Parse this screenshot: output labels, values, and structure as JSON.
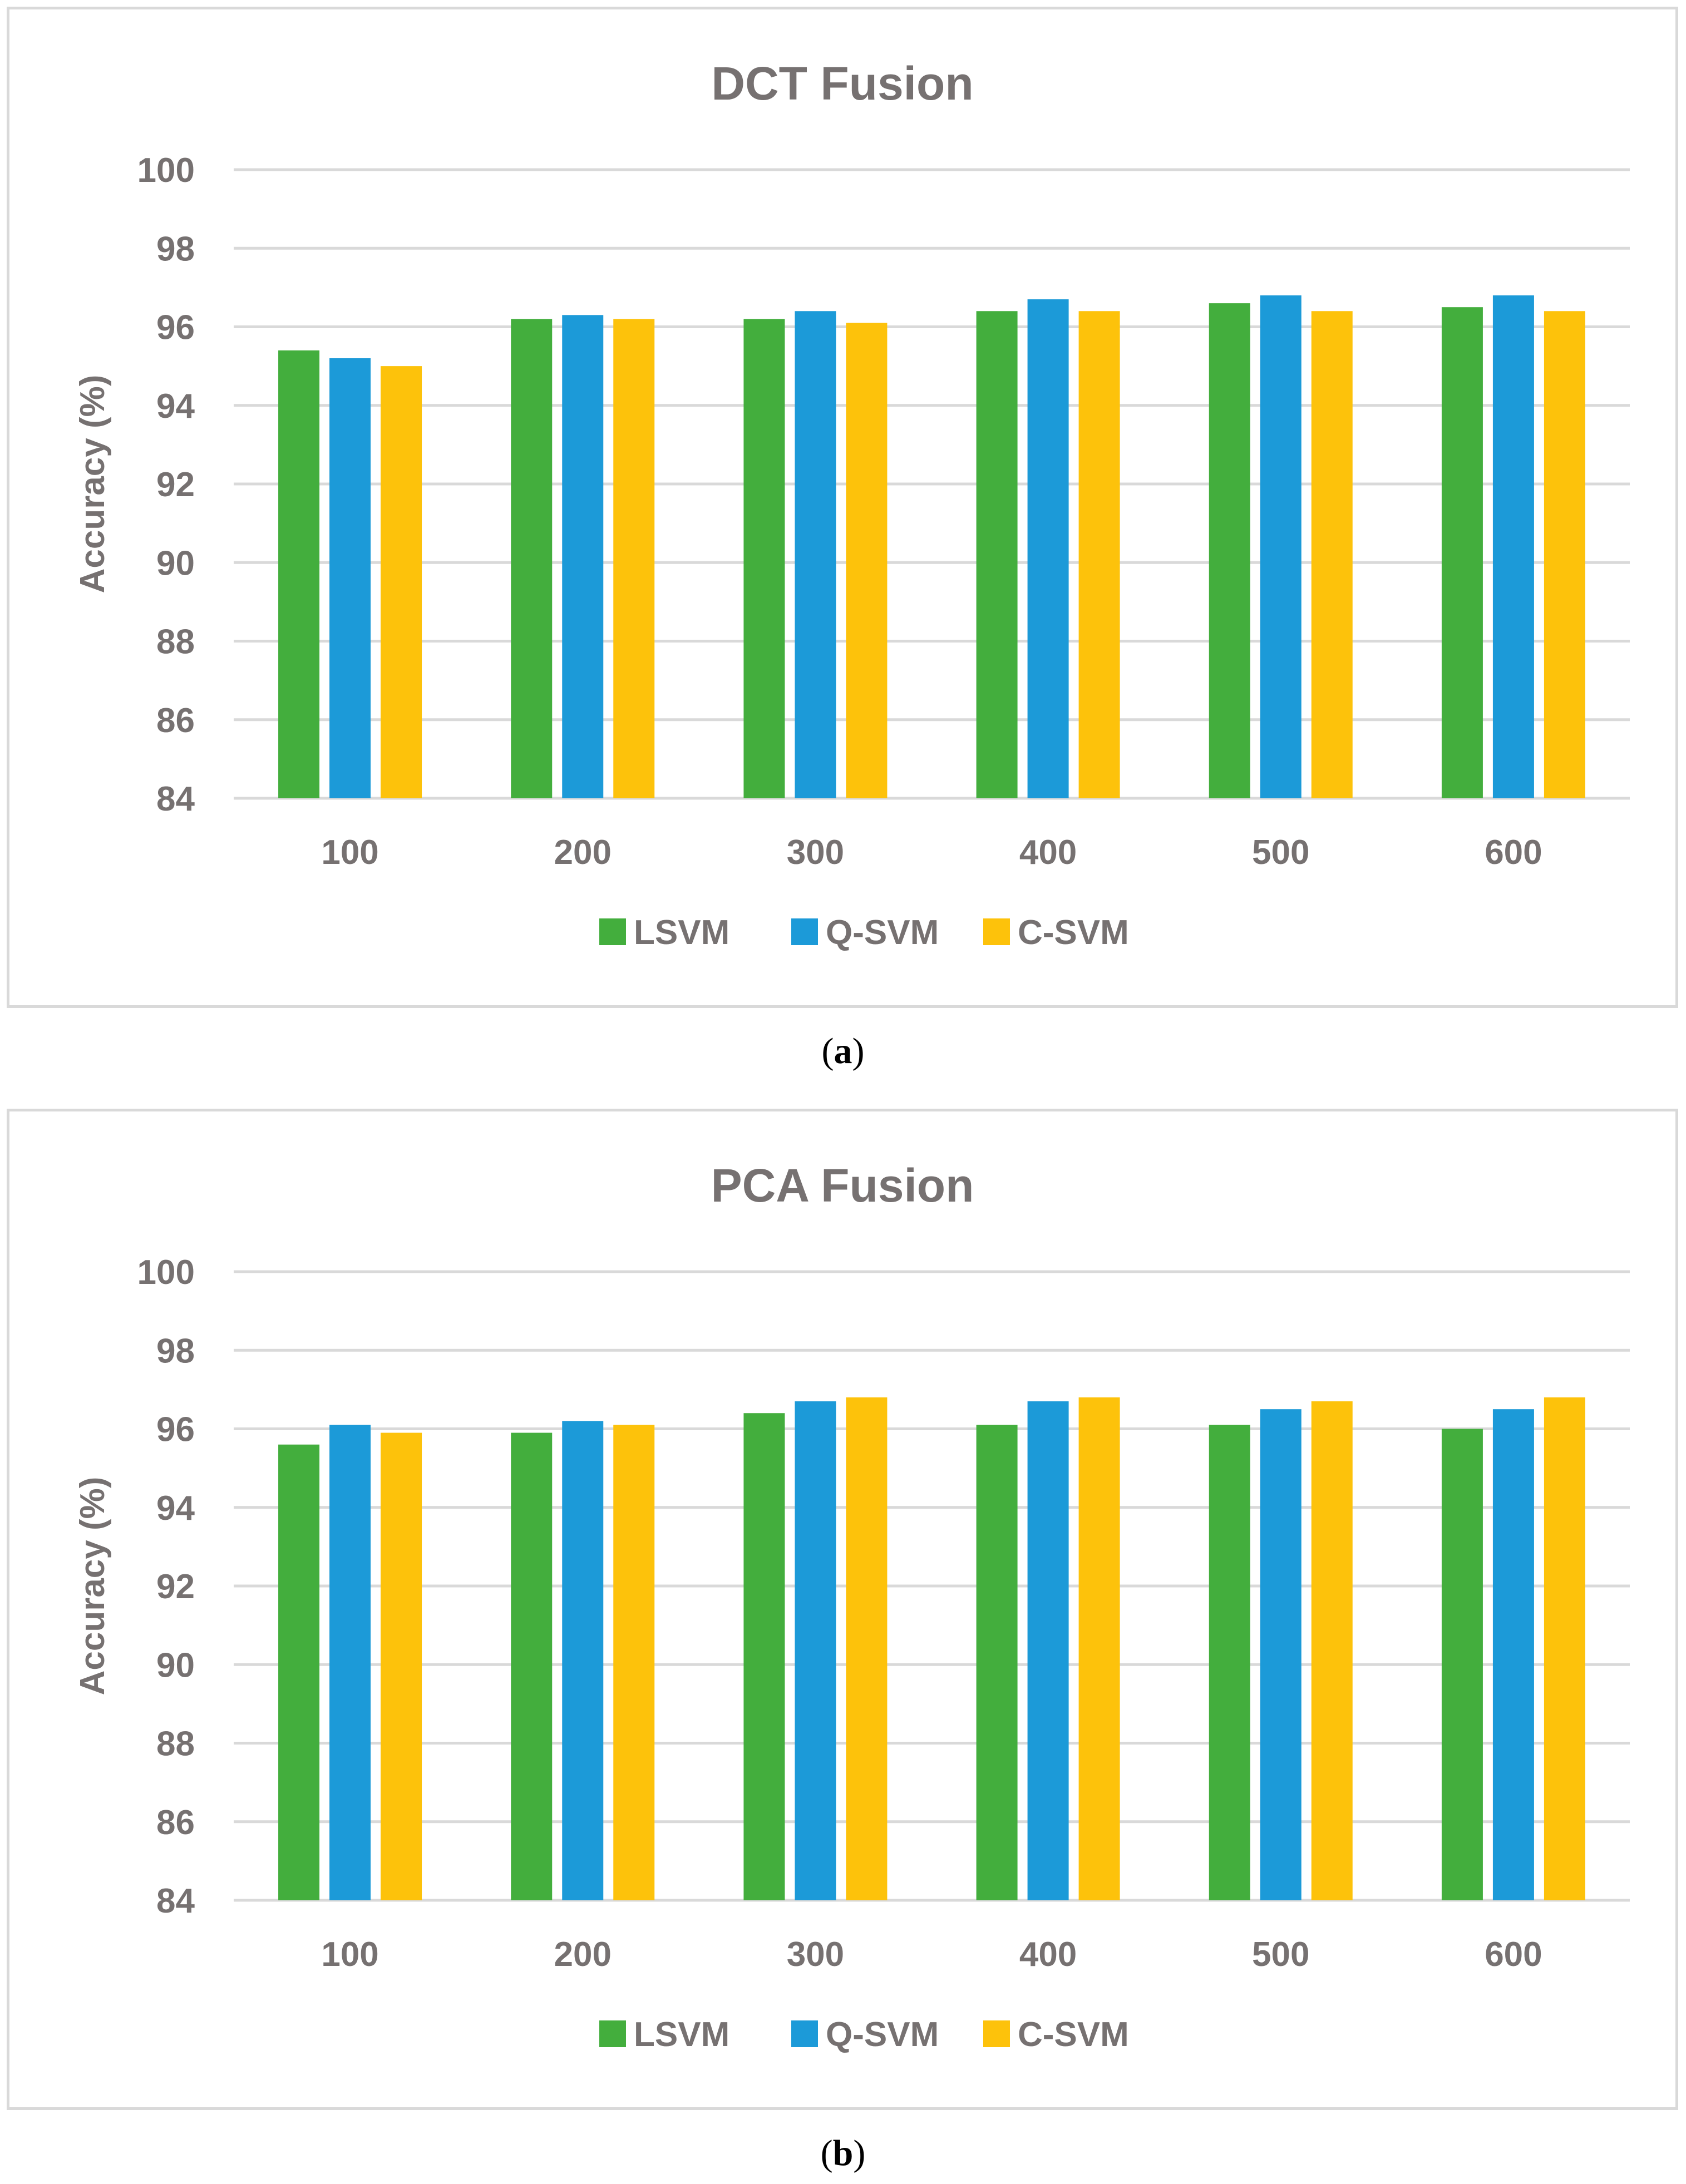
{
  "series_colors": {
    "LSVM": "#43ae3d",
    "Q-SVM": "#1c9ad8",
    "C-SVM": "#fdc20b"
  },
  "chart_data": [
    {
      "type": "bar",
      "title": "DCT Fusion",
      "caption": "a",
      "xlabel": "",
      "ylabel": "Accuracy (%)",
      "ylim": [
        84,
        100
      ],
      "yticks": [
        84,
        86,
        88,
        90,
        92,
        94,
        96,
        98,
        100
      ],
      "grid": true,
      "legend": "bottom",
      "categories": [
        "100",
        "200",
        "300",
        "400",
        "500",
        "600"
      ],
      "series": [
        {
          "name": "LSVM",
          "values": [
            95.4,
            96.2,
            96.2,
            96.4,
            96.6,
            96.5
          ]
        },
        {
          "name": "Q-SVM",
          "values": [
            95.2,
            96.3,
            96.4,
            96.7,
            96.8,
            96.8
          ]
        },
        {
          "name": "C-SVM",
          "values": [
            95.0,
            96.2,
            96.1,
            96.4,
            96.4,
            96.4
          ]
        }
      ]
    },
    {
      "type": "bar",
      "title": "PCA Fusion",
      "caption": "b",
      "xlabel": "",
      "ylabel": "Accuracy (%)",
      "ylim": [
        84,
        100
      ],
      "yticks": [
        84,
        86,
        88,
        90,
        92,
        94,
        96,
        98,
        100
      ],
      "grid": true,
      "legend": "bottom",
      "categories": [
        "100",
        "200",
        "300",
        "400",
        "500",
        "600"
      ],
      "series": [
        {
          "name": "LSVM",
          "values": [
            95.6,
            95.9,
            96.4,
            96.1,
            96.1,
            96.0
          ]
        },
        {
          "name": "Q-SVM",
          "values": [
            96.1,
            96.2,
            96.7,
            96.7,
            96.5,
            96.5
          ]
        },
        {
          "name": "C-SVM",
          "values": [
            95.9,
            96.1,
            96.8,
            96.8,
            96.7,
            96.8
          ]
        }
      ]
    }
  ]
}
